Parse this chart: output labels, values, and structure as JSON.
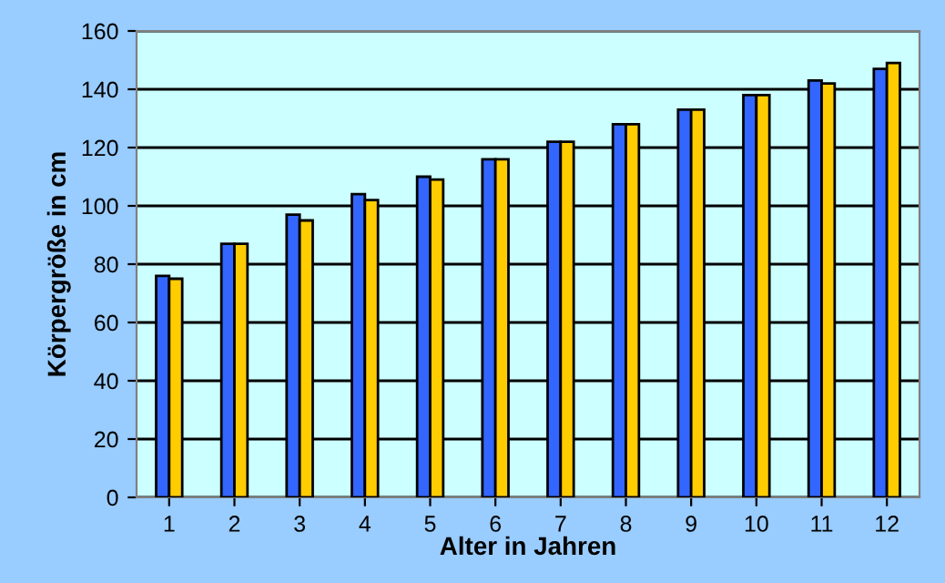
{
  "chart_data": {
    "type": "bar",
    "xlabel": "Alter in Jahren",
    "ylabel": "Körpergröße in cm",
    "categories": [
      "1",
      "2",
      "3",
      "4",
      "5",
      "6",
      "7",
      "8",
      "9",
      "10",
      "11",
      "12"
    ],
    "series": [
      {
        "color": "#3366ff",
        "values": [
          76,
          87,
          97,
          104,
          110,
          116,
          122,
          128,
          133,
          138,
          143,
          147
        ]
      },
      {
        "color": "#ffcc00",
        "values": [
          75,
          87,
          95,
          102,
          109,
          116,
          122,
          128,
          133,
          138,
          142,
          149
        ]
      }
    ],
    "ylim": [
      0,
      160
    ],
    "yticks": [
      0,
      20,
      40,
      60,
      80,
      100,
      120,
      140,
      160
    ],
    "grid": "y",
    "legend": false
  }
}
